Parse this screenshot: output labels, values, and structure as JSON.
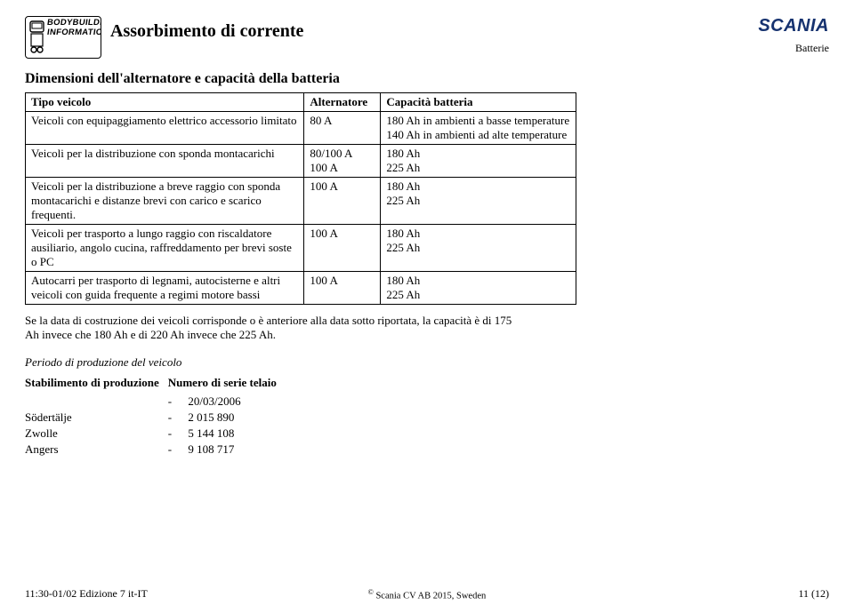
{
  "header": {
    "logo_line1": "BODYBUILDING",
    "logo_line2": "INFORMATION",
    "title": "Assorbimento di corrente",
    "brand": "SCANIA",
    "brand_sub": "Batterie"
  },
  "section_title": "Dimensioni dell'alternatore e capacità della batteria",
  "table": {
    "headers": [
      "Tipo veicolo",
      "Alternatore",
      "Capacità batteria"
    ],
    "rows": [
      {
        "c1": "Veicoli con equipaggiamento elettrico accessorio limitato",
        "c2": "80 A",
        "c3": "180 Ah in ambienti a basse temperature\n140 Ah in ambienti ad alte temperature"
      },
      {
        "c1": "Veicoli per la distribuzione con sponda montacarichi",
        "c2": "80/100 A\n100 A",
        "c3": "180 Ah\n225 Ah"
      },
      {
        "c1": "Veicoli per la distribuzione a breve raggio con sponda montacarichi e distanze brevi con carico e scarico frequenti.",
        "c2": "100 A",
        "c3": "180 Ah\n225 Ah"
      },
      {
        "c1": "Veicoli per trasporto a lungo raggio con riscaldatore ausiliario, angolo cucina, raffreddamento per brevi soste o PC",
        "c2": "100 A",
        "c3": "180 Ah\n225 Ah"
      },
      {
        "c1": "Autocarri per trasporto di legnami, autocisterne e altri veicoli con guida frequente a regimi motore bassi",
        "c2": "100 A",
        "c3": "180 Ah\n225 Ah"
      }
    ]
  },
  "note": "Se la data di costruzione dei veicoli corrisponde o è anteriore alla data sotto riportata, la capacità è di 175 Ah invece che 180 Ah e di 220 Ah invece che 225 Ah.",
  "period_title": "Periodo di produzione del veicolo",
  "prod_table": {
    "headers": [
      "Stabilimento di produzione",
      "Numero di serie telaio"
    ],
    "rows": [
      {
        "plant": "",
        "serial": "20/03/2006"
      },
      {
        "plant": "Södertälje",
        "serial": "2 015 890"
      },
      {
        "plant": "Zwolle",
        "serial": "5 144 108"
      },
      {
        "plant": "Angers",
        "serial": "9 108 717"
      }
    ]
  },
  "footer": {
    "left": "11:30-01/02 Edizione 7 it-IT",
    "center": "Scania CV AB 2015, Sweden",
    "right": "11 (12)"
  }
}
